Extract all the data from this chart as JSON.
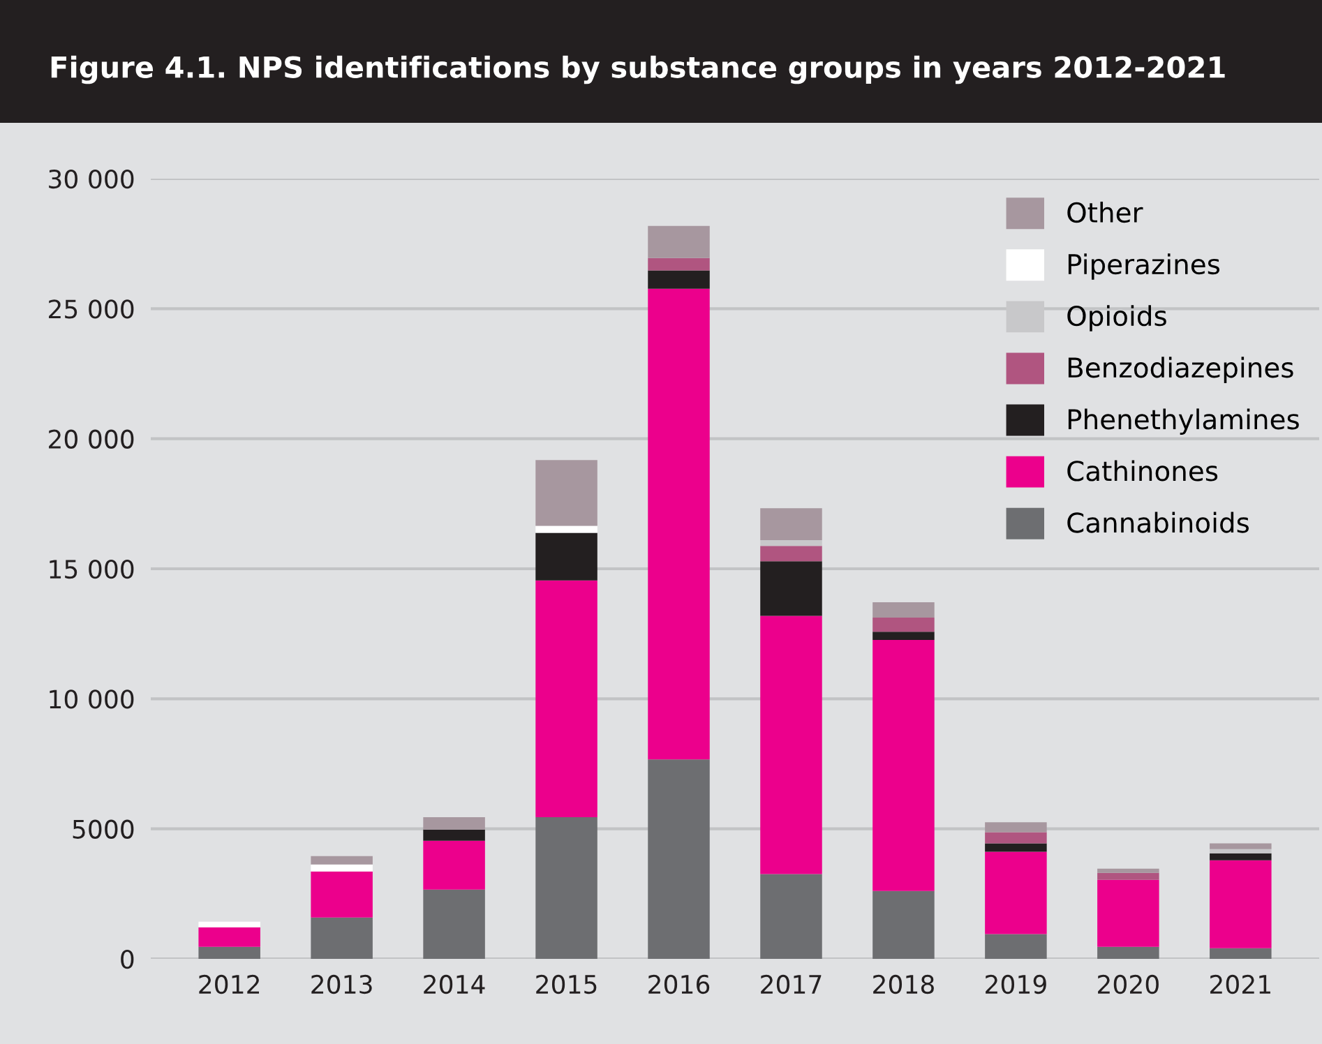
{
  "chart_data": {
    "type": "bar",
    "stacked": true,
    "title": "Figure 4.1. NPS identifications by substance groups in years 2012-2021",
    "categories": [
      "2012",
      "2013",
      "2014",
      "2015",
      "2016",
      "2017",
      "2018",
      "2019",
      "2020",
      "2021"
    ],
    "series": [
      {
        "name": "Cannabinoids",
        "color": "#6d6e71",
        "values": [
          465,
          1590,
          2660,
          5450,
          7670,
          3260,
          2610,
          950,
          465,
          410
        ]
      },
      {
        "name": "Cathinones",
        "color": "#ec008c",
        "values": [
          750,
          1770,
          1880,
          9100,
          18100,
          9930,
          9650,
          3170,
          2575,
          3380
        ]
      },
      {
        "name": "Phenethylamines",
        "color": "#231f20",
        "values": [
          null,
          null,
          430,
          1830,
          700,
          2100,
          320,
          320,
          null,
          270
        ]
      },
      {
        "name": "Benzodiazepines",
        "color": "#b05580",
        "values": [
          null,
          null,
          null,
          null,
          480,
          590,
          540,
          430,
          270,
          null
        ]
      },
      {
        "name": "Opioids",
        "color": "#c8c8ca",
        "values": [
          null,
          null,
          null,
          null,
          null,
          220,
          null,
          null,
          null,
          160
        ]
      },
      {
        "name": "Piperazines",
        "color": "#ffffff",
        "values": [
          215,
          270,
          null,
          270,
          null,
          null,
          null,
          null,
          null,
          null
        ]
      },
      {
        "name": "Other",
        "color": "#a7979f",
        "values": [
          null,
          320,
          480,
          2530,
          1230,
          1230,
          590,
          380,
          160,
          220
        ]
      }
    ],
    "ylim": [
      0,
      30000
    ],
    "yticks": [
      0,
      5000,
      {
        "value": 10000,
        "label": "10 000"
      },
      {
        "value": 15000,
        "label": "15 000"
      },
      {
        "value": 20000,
        "label": "20 000"
      },
      {
        "value": 25000,
        "label": "25 000"
      },
      {
        "value": 30000,
        "label": "30 000"
      }
    ],
    "grid": "y",
    "legend": "top right"
  }
}
